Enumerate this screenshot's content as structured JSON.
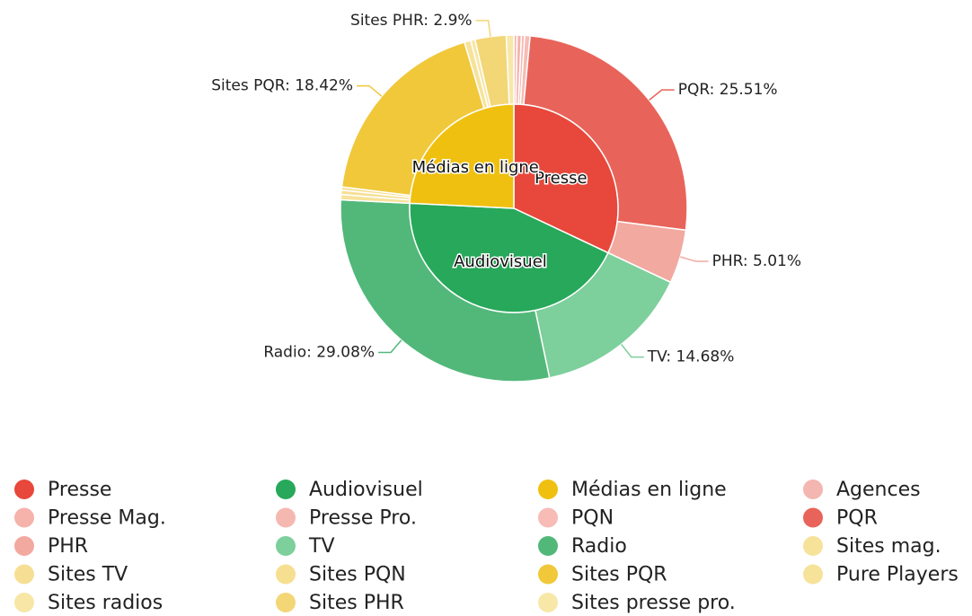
{
  "chart_data": {
    "type": "sunburst",
    "inner": {
      "labels": [
        "Presse",
        "Audiovisuel",
        "Médias en ligne"
      ],
      "values": [
        32.02,
        43.76,
        24.22
      ],
      "colors": [
        "#e8473b",
        "#27a85a",
        "#f0c010"
      ]
    },
    "outer": {
      "labels": [
        "Agences",
        "Presse Mag.",
        "Presse Pro.",
        "PQN",
        "PQR",
        "PHR",
        "TV",
        "Radio",
        "Sites mag.",
        "Sites TV",
        "Sites PQN",
        "Sites PQR",
        "Pure Players",
        "Sites radios",
        "Sites PHR",
        "Sites presse pro."
      ],
      "values": [
        0.3,
        0.4,
        0.3,
        0.5,
        25.51,
        5.01,
        14.68,
        29.08,
        0.5,
        0.4,
        0.3,
        18.42,
        0.6,
        0.4,
        2.9,
        0.7
      ],
      "value_labels": [
        null,
        null,
        null,
        null,
        "PQR: 25.51%",
        "PHR: 5.01%",
        "TV: 14.68%",
        "Radio: 29.08%",
        null,
        null,
        null,
        "Sites PQR: 18.42%",
        null,
        null,
        "Sites PHR: 2.9%",
        null
      ],
      "colors": [
        "#f4b6b0",
        "#f5b3ab",
        "#f5b8b0",
        "#f6bcb5",
        "#e8645a",
        "#f2a9a0",
        "#7dcf9b",
        "#52b87a",
        "#f7e29a",
        "#f6df95",
        "#f6df90",
        "#f0c83a",
        "#f7e29a",
        "#f7e6a5",
        "#f3d675",
        "#f8e8a8"
      ]
    },
    "legend": true
  }
}
